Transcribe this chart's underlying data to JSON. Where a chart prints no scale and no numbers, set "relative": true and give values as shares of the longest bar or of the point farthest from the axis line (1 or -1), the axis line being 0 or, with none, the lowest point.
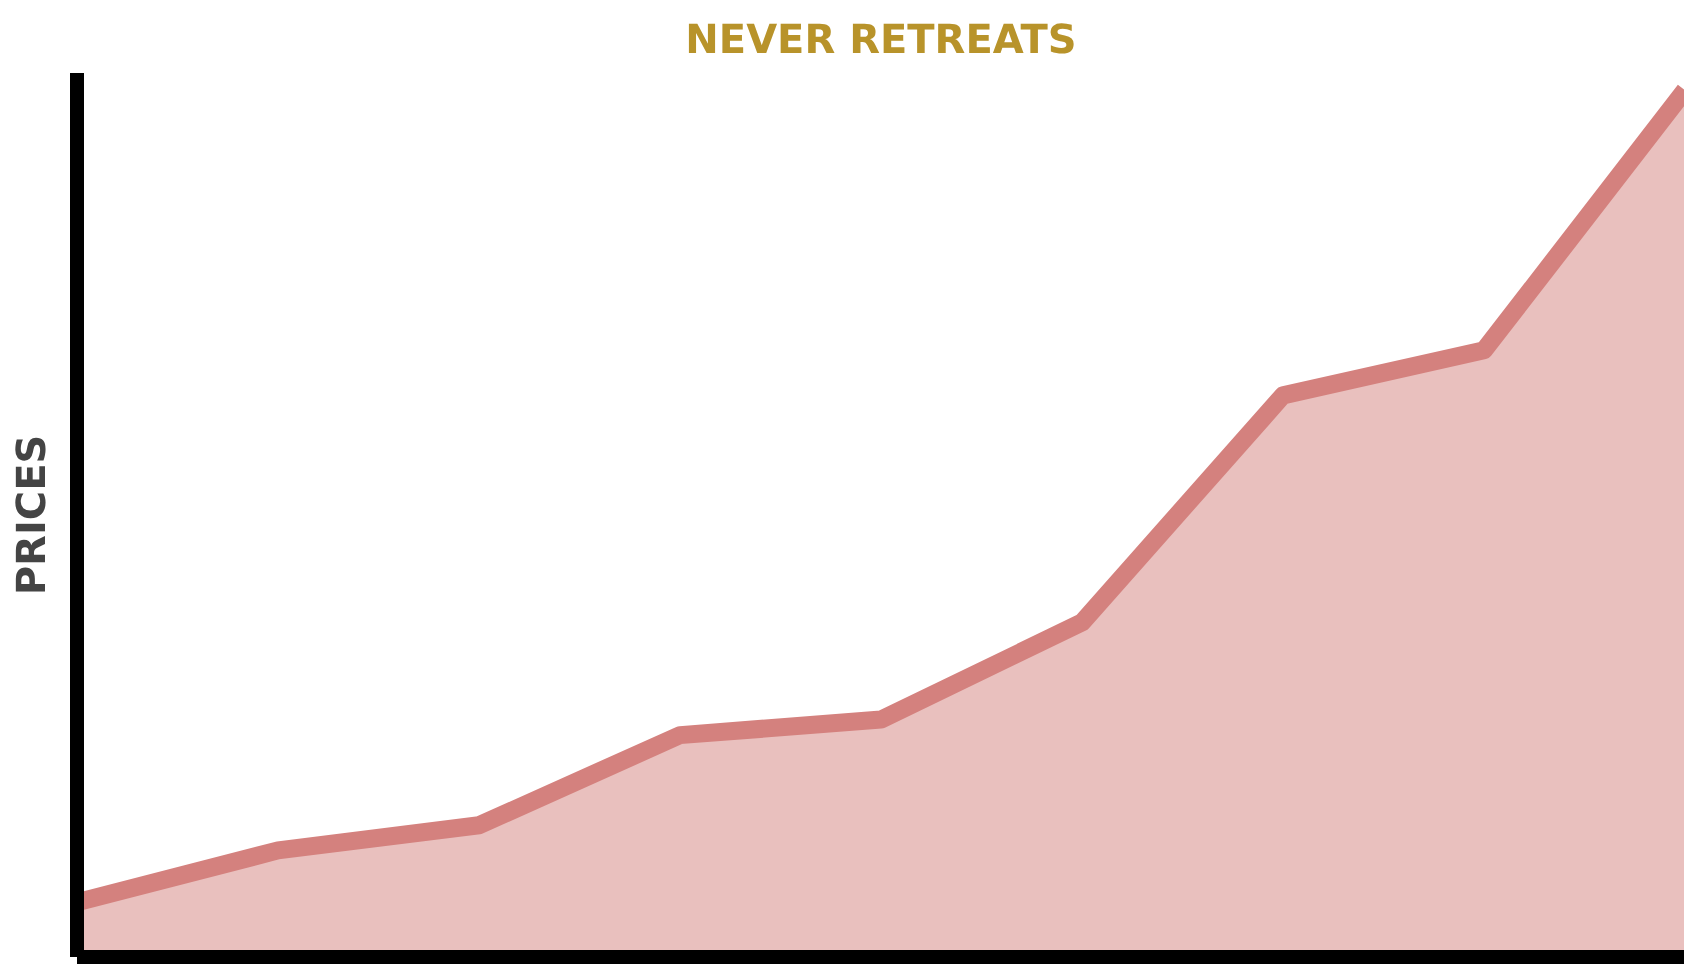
{
  "chart_data": {
    "type": "area",
    "title": "NEVER RETREATS",
    "ylabel": "PRICES",
    "relative": true,
    "categories": [
      null,
      null,
      null,
      null,
      null,
      null,
      null,
      null,
      null
    ],
    "series": [
      {
        "color": "#d4817e",
        "values": [
          0.063,
          0.123,
          0.152,
          0.256,
          0.274,
          0.386,
          0.648,
          0.7,
          1.0
        ]
      }
    ],
    "grid": false
  }
}
